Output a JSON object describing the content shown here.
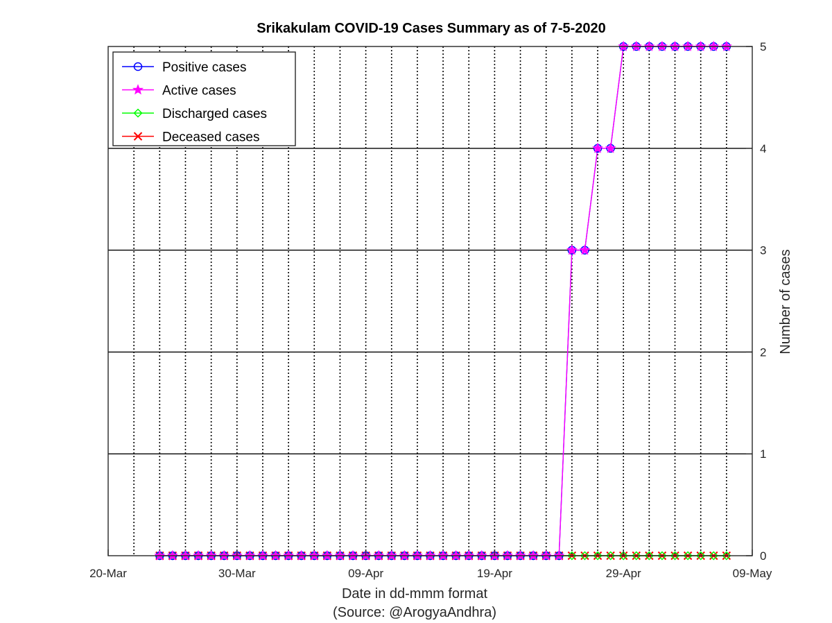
{
  "chart_data": {
    "type": "line",
    "title": "Srikakulam COVID-19 Cases Summary as of 7-5-2020",
    "xlabel": "Date in dd-mmm format",
    "xlabel2": "(Source: @ArogyaAndhra)",
    "ylabel": "Number of cases",
    "x_tick_labels": [
      "20-Mar",
      "30-Mar",
      "09-Apr",
      "19-Apr",
      "29-Apr",
      "09-May"
    ],
    "x_range": [
      "2020-03-20",
      "2020-05-09"
    ],
    "y_ticks": [
      0,
      1,
      2,
      3,
      4,
      5
    ],
    "ylim": [
      0,
      5
    ],
    "y_axis_side": "right",
    "grid": {
      "x": "dotted",
      "y": "solid"
    },
    "legend_position": "top-left",
    "x": [
      "2020-03-24",
      "2020-03-25",
      "2020-03-26",
      "2020-03-27",
      "2020-03-28",
      "2020-03-29",
      "2020-03-30",
      "2020-03-31",
      "2020-04-01",
      "2020-04-02",
      "2020-04-03",
      "2020-04-04",
      "2020-04-05",
      "2020-04-06",
      "2020-04-07",
      "2020-04-08",
      "2020-04-09",
      "2020-04-10",
      "2020-04-11",
      "2020-04-12",
      "2020-04-13",
      "2020-04-14",
      "2020-04-15",
      "2020-04-16",
      "2020-04-17",
      "2020-04-18",
      "2020-04-19",
      "2020-04-20",
      "2020-04-21",
      "2020-04-22",
      "2020-04-23",
      "2020-04-24",
      "2020-04-25",
      "2020-04-26",
      "2020-04-27",
      "2020-04-28",
      "2020-04-29",
      "2020-04-30",
      "2020-05-01",
      "2020-05-02",
      "2020-05-03",
      "2020-05-04",
      "2020-05-05",
      "2020-05-06",
      "2020-05-07"
    ],
    "series": [
      {
        "name": "Positive cases",
        "color": "#0000ff",
        "marker": "circle",
        "values": [
          0,
          0,
          0,
          0,
          0,
          0,
          0,
          0,
          0,
          0,
          0,
          0,
          0,
          0,
          0,
          0,
          0,
          0,
          0,
          0,
          0,
          0,
          0,
          0,
          0,
          0,
          0,
          0,
          0,
          0,
          0,
          0,
          3,
          3,
          4,
          4,
          5,
          5,
          5,
          5,
          5,
          5,
          5,
          5,
          5
        ]
      },
      {
        "name": "Active cases",
        "color": "#ff00ff",
        "marker": "star",
        "values": [
          0,
          0,
          0,
          0,
          0,
          0,
          0,
          0,
          0,
          0,
          0,
          0,
          0,
          0,
          0,
          0,
          0,
          0,
          0,
          0,
          0,
          0,
          0,
          0,
          0,
          0,
          0,
          0,
          0,
          0,
          0,
          0,
          3,
          3,
          4,
          4,
          5,
          5,
          5,
          5,
          5,
          5,
          5,
          5,
          5
        ]
      },
      {
        "name": "Discharged cases",
        "color": "#00ff00",
        "marker": "diamond",
        "values": [
          0,
          0,
          0,
          0,
          0,
          0,
          0,
          0,
          0,
          0,
          0,
          0,
          0,
          0,
          0,
          0,
          0,
          0,
          0,
          0,
          0,
          0,
          0,
          0,
          0,
          0,
          0,
          0,
          0,
          0,
          0,
          0,
          0,
          0,
          0,
          0,
          0,
          0,
          0,
          0,
          0,
          0,
          0,
          0,
          0
        ]
      },
      {
        "name": "Deceased cases",
        "color": "#ff0000",
        "marker": "x",
        "values": [
          0,
          0,
          0,
          0,
          0,
          0,
          0,
          0,
          0,
          0,
          0,
          0,
          0,
          0,
          0,
          0,
          0,
          0,
          0,
          0,
          0,
          0,
          0,
          0,
          0,
          0,
          0,
          0,
          0,
          0,
          0,
          0,
          0,
          0,
          0,
          0,
          0,
          0,
          0,
          0,
          0,
          0,
          0,
          0,
          0
        ]
      }
    ]
  }
}
